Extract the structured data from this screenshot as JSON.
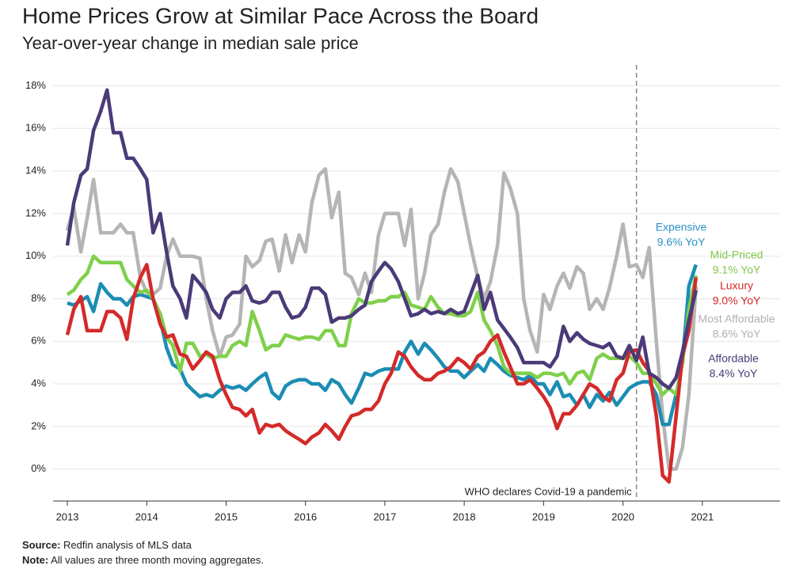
{
  "chart_data": {
    "type": "line",
    "title": "Home Prices Grow at Similar Pace Across the Board",
    "subtitle": "Year-over-year change in median sale price",
    "x": [
      2013,
      2013.08,
      2013.17,
      2013.25,
      2013.33,
      2013.42,
      2013.5,
      2013.58,
      2013.67,
      2013.75,
      2013.83,
      2013.92,
      2014,
      2014.08,
      2014.17,
      2014.25,
      2014.33,
      2014.42,
      2014.5,
      2014.58,
      2014.67,
      2014.75,
      2014.83,
      2014.92,
      2015,
      2015.08,
      2015.17,
      2015.25,
      2015.33,
      2015.42,
      2015.5,
      2015.58,
      2015.67,
      2015.75,
      2015.83,
      2015.92,
      2016,
      2016.08,
      2016.17,
      2016.25,
      2016.33,
      2016.42,
      2016.5,
      2016.58,
      2016.67,
      2016.75,
      2016.83,
      2016.92,
      2017,
      2017.08,
      2017.17,
      2017.25,
      2017.33,
      2017.42,
      2017.5,
      2017.58,
      2017.67,
      2017.75,
      2017.83,
      2017.92,
      2018,
      2018.08,
      2018.17,
      2018.25,
      2018.33,
      2018.42,
      2018.5,
      2018.58,
      2018.67,
      2018.75,
      2018.83,
      2018.92,
      2019,
      2019.08,
      2019.17,
      2019.25,
      2019.33,
      2019.42,
      2019.5,
      2019.58,
      2019.67,
      2019.75,
      2019.83,
      2019.92,
      2020,
      2020.08,
      2020.17,
      2020.25,
      2020.33,
      2020.42,
      2020.5,
      2020.58,
      2020.67,
      2020.75,
      2020.83,
      2020.92
    ],
    "series": [
      {
        "name": "Expensive",
        "end_label": "9.6% YoY",
        "color": "#1b8db3",
        "label_color": "#2a93c7",
        "values": [
          7.8,
          7.7,
          7.9,
          8.1,
          7.4,
          8.7,
          8.3,
          8.0,
          8.0,
          7.7,
          8.1,
          8.2,
          8.1,
          8.0,
          7.0,
          5.7,
          4.9,
          4.7,
          4.0,
          3.7,
          3.4,
          3.5,
          3.4,
          3.7,
          3.9,
          3.8,
          3.9,
          3.7,
          4.0,
          4.3,
          4.5,
          3.6,
          3.3,
          3.9,
          4.1,
          4.2,
          4.2,
          4.0,
          4.0,
          3.7,
          4.2,
          4.0,
          3.5,
          3.1,
          3.8,
          4.5,
          4.4,
          4.6,
          4.7,
          4.7,
          4.7,
          5.5,
          6.0,
          5.4,
          5.9,
          5.6,
          5.2,
          4.8,
          4.6,
          4.6,
          4.3,
          4.6,
          4.9,
          4.6,
          5.2,
          4.9,
          4.6,
          4.4,
          4.3,
          4.2,
          4.4,
          4.0,
          4.0,
          3.5,
          4.1,
          3.4,
          3.5,
          3.0,
          3.5,
          2.9,
          3.5,
          3.2,
          3.6,
          3.0,
          3.4,
          3.8,
          4.0,
          4.1,
          4.1,
          3.5,
          2.1,
          2.1,
          3.5,
          5.0,
          8.6,
          9.6
        ]
      },
      {
        "name": "Mid-Priced",
        "end_label": "9.1% YoY",
        "color": "#7fd04b",
        "label_color": "#7fc94a",
        "values": [
          8.2,
          8.4,
          8.9,
          9.2,
          10.0,
          9.7,
          9.7,
          9.7,
          9.7,
          8.9,
          8.6,
          8.3,
          8.4,
          8.0,
          7.3,
          6.2,
          5.8,
          4.6,
          5.9,
          5.9,
          5.3,
          5.4,
          5.2,
          5.3,
          5.3,
          5.8,
          6.0,
          5.8,
          7.4,
          6.5,
          5.6,
          5.8,
          5.8,
          6.3,
          6.2,
          6.1,
          6.2,
          6.2,
          6.1,
          6.5,
          6.5,
          5.8,
          5.8,
          7.3,
          8.0,
          7.8,
          7.8,
          7.9,
          7.9,
          8.1,
          8.1,
          8.3,
          7.7,
          7.6,
          7.5,
          8.1,
          7.6,
          7.3,
          7.3,
          7.2,
          7.2,
          7.4,
          8.3,
          7.0,
          6.5,
          5.8,
          4.8,
          4.5,
          4.5,
          4.5,
          4.5,
          4.3,
          4.5,
          4.5,
          4.4,
          4.5,
          4.0,
          4.5,
          4.6,
          4.2,
          5.2,
          5.4,
          5.2,
          5.2,
          5.2,
          5.3,
          5.0,
          4.5,
          4.5,
          4.0,
          3.5,
          3.8,
          3.5,
          5.0,
          7.5,
          9.1
        ]
      },
      {
        "name": "Luxury",
        "end_label": "9.0% YoY",
        "color": "#d42a2a",
        "label_color": "#d42a2a",
        "values": [
          6.3,
          7.5,
          8.1,
          6.5,
          6.5,
          6.5,
          7.4,
          7.4,
          7.1,
          6.1,
          8.0,
          9.0,
          9.6,
          8.0,
          6.8,
          6.2,
          6.3,
          5.4,
          5.3,
          4.7,
          5.1,
          5.5,
          5.3,
          4.2,
          3.5,
          2.9,
          2.8,
          2.5,
          2.8,
          1.7,
          2.1,
          2.0,
          2.1,
          1.8,
          1.6,
          1.4,
          1.2,
          1.5,
          1.7,
          2.1,
          1.8,
          1.4,
          2.0,
          2.5,
          2.6,
          2.8,
          2.8,
          3.2,
          4.0,
          4.5,
          5.5,
          5.3,
          4.8,
          4.4,
          4.2,
          4.2,
          4.5,
          4.6,
          4.8,
          5.2,
          5.0,
          4.7,
          5.3,
          5.5,
          6.0,
          6.3,
          5.5,
          4.8,
          4.0,
          4.0,
          4.2,
          3.8,
          3.4,
          2.9,
          1.9,
          2.6,
          2.6,
          3.0,
          3.5,
          4.0,
          3.8,
          3.4,
          3.2,
          4.2,
          4.5,
          5.5,
          5.6,
          5.0,
          4.6,
          2.5,
          -0.3,
          -0.6,
          2.5,
          5.3,
          6.5,
          9.0
        ]
      },
      {
        "name": "Most Affordable",
        "end_label": "8.6% YoY",
        "color": "#b5b5b5",
        "label_color": "#b0b0b0",
        "values": [
          11.2,
          12.3,
          10.2,
          11.8,
          13.6,
          11.1,
          11.1,
          11.1,
          11.5,
          11.1,
          11.1,
          9.0,
          8.3,
          8.2,
          8.5,
          10.0,
          10.8,
          10.0,
          10.0,
          10.0,
          9.9,
          8.0,
          6.5,
          5.3,
          6.2,
          6.3,
          6.8,
          10.0,
          9.5,
          9.8,
          10.7,
          10.8,
          9.3,
          11.0,
          9.7,
          11.0,
          10.2,
          12.5,
          13.8,
          14.1,
          11.8,
          13.0,
          9.2,
          9.0,
          8.2,
          9.2,
          8.3,
          11.0,
          12.0,
          12.0,
          12.0,
          10.5,
          12.2,
          8.0,
          9.2,
          11.0,
          11.5,
          13.0,
          14.1,
          13.5,
          12.0,
          10.5,
          9.0,
          8.0,
          8.8,
          10.5,
          13.9,
          13.2,
          12.0,
          8.0,
          6.5,
          5.5,
          8.2,
          7.5,
          8.6,
          9.2,
          8.5,
          9.5,
          9.2,
          7.5,
          8.0,
          7.5,
          8.5,
          10.0,
          11.5,
          9.5,
          9.6,
          9.0,
          10.4,
          6.0,
          2.5,
          0.0,
          0.0,
          1.0,
          3.5,
          8.6
        ]
      },
      {
        "name": "Affordable",
        "end_label": "8.4% YoY",
        "color": "#4b3a78",
        "label_color": "#4b3a78",
        "values": [
          10.5,
          12.5,
          13.8,
          14.1,
          15.9,
          16.8,
          17.8,
          15.8,
          15.8,
          14.6,
          14.6,
          14.1,
          13.6,
          11.1,
          12.0,
          10.2,
          8.6,
          8.0,
          7.1,
          9.1,
          8.7,
          8.3,
          7.5,
          7.1,
          8.0,
          8.3,
          8.3,
          8.6,
          7.9,
          7.8,
          7.9,
          8.3,
          8.3,
          7.6,
          7.1,
          7.2,
          7.6,
          8.5,
          8.5,
          8.2,
          6.9,
          7.1,
          7.1,
          7.2,
          7.5,
          7.7,
          8.8,
          9.3,
          9.7,
          9.4,
          8.8,
          8.0,
          7.2,
          7.3,
          7.5,
          7.3,
          7.4,
          7.3,
          7.5,
          7.3,
          7.4,
          8.2,
          9.1,
          7.5,
          8.3,
          7.0,
          6.6,
          6.2,
          5.7,
          5.0,
          5.0,
          5.0,
          5.0,
          4.8,
          5.3,
          6.7,
          6.0,
          6.4,
          6.1,
          5.9,
          5.8,
          5.7,
          5.9,
          5.3,
          5.2,
          5.8,
          5.1,
          6.2,
          4.5,
          4.3,
          4.0,
          3.8,
          4.3,
          5.5,
          7.0,
          8.4
        ]
      }
    ],
    "xlim": [
      2012.8,
      2021.9
    ],
    "xticks": [
      2013,
      2014,
      2015,
      2016,
      2017,
      2018,
      2019,
      2020,
      2021
    ],
    "ylim": [
      -1.5,
      18.5
    ],
    "yticks": [
      {
        "value": 0,
        "label": "0%"
      },
      {
        "value": 2,
        "label": "2%"
      },
      {
        "value": 4,
        "label": "4%"
      },
      {
        "value": 6,
        "label": "6%"
      },
      {
        "value": 8,
        "label": "8%"
      },
      {
        "value": 10,
        "label": "10%"
      },
      {
        "value": 12,
        "label": "12%"
      },
      {
        "value": 14,
        "label": "14%"
      },
      {
        "value": 16,
        "label": "16%"
      },
      {
        "value": 18,
        "label": "18%"
      }
    ],
    "grid": true,
    "annotation": {
      "x": 2020.17,
      "label": "WHO declares Covid-19 a pandemic"
    },
    "footnotes": [
      {
        "label": "Source:",
        "text": "Redfin analysis of MLS data"
      },
      {
        "label": "Note:",
        "text": "All values are three month moving aggregates."
      }
    ]
  }
}
